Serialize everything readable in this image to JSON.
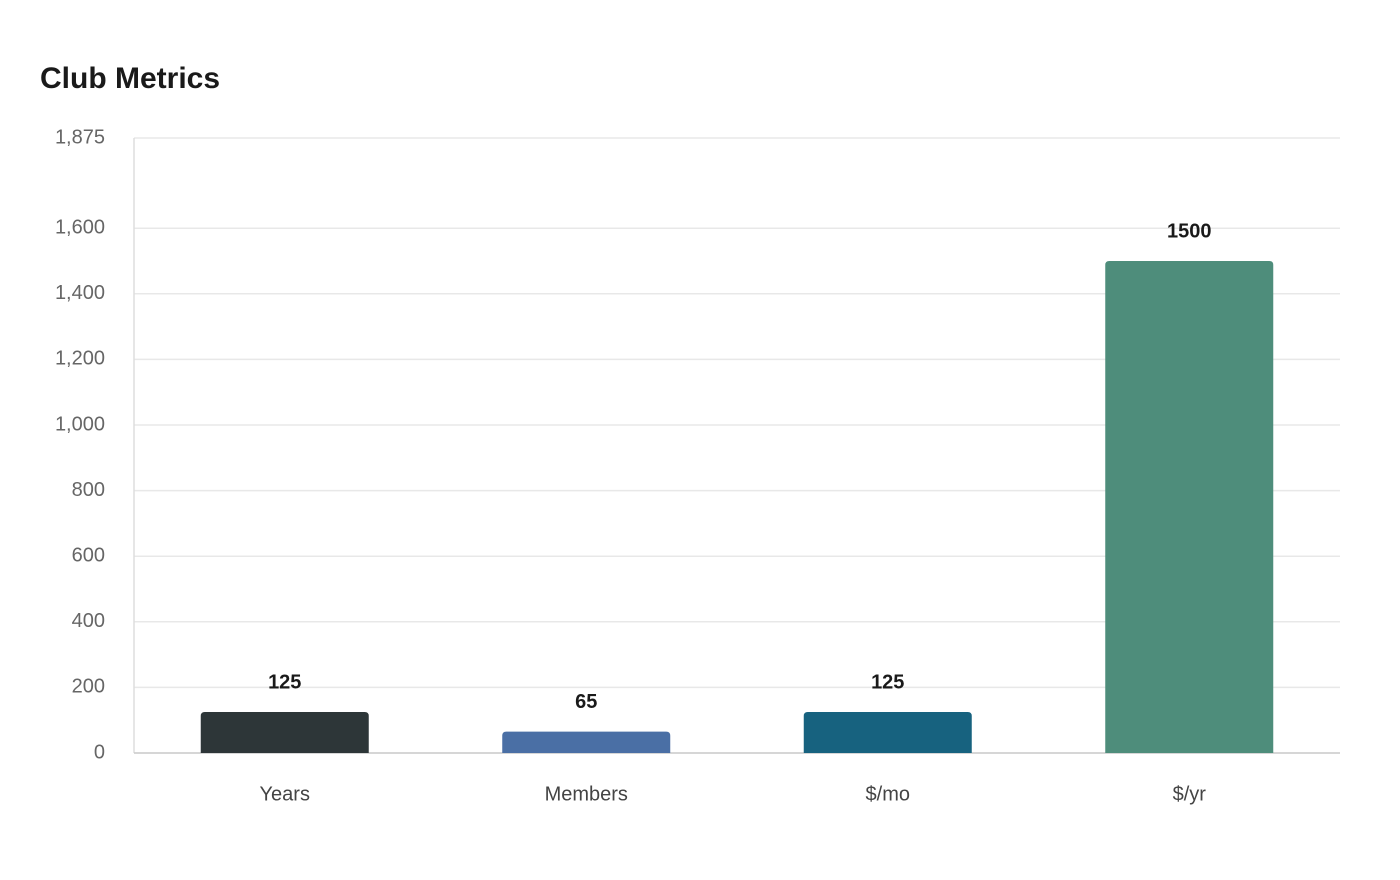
{
  "chart_data": {
    "type": "bar",
    "title": "Club Metrics",
    "categories": [
      "Years",
      "Members",
      "$/mo",
      "$/yr"
    ],
    "values": [
      125,
      65,
      125,
      1500
    ],
    "colors": [
      "#2d3638",
      "#4a6fa5",
      "#17627f",
      "#4e8d7b"
    ],
    "ylim": [
      0,
      1875
    ],
    "yticks": [
      0,
      200,
      400,
      600,
      800,
      {
        "value": 1000,
        "label": "1,000"
      },
      {
        "value": 1200,
        "label": "1,200"
      },
      {
        "value": 1400,
        "label": "1,400"
      },
      {
        "value": 1600,
        "label": "1,600"
      },
      {
        "value": 1875,
        "label": "1,875"
      }
    ],
    "grid": true
  }
}
